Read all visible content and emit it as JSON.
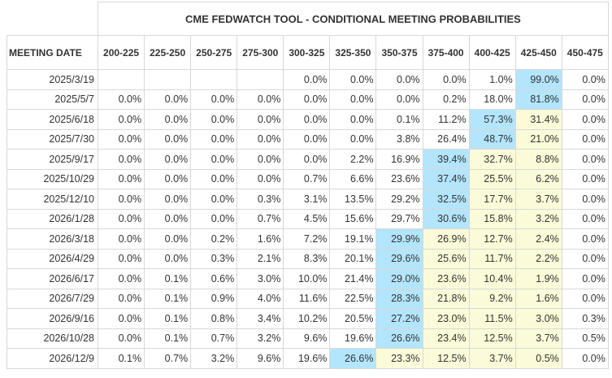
{
  "title": "CME FEDWATCH TOOL - CONDITIONAL MEETING PROBABILITIES",
  "colors": {
    "highest": "#b3e5fc",
    "elevated": "#fbfbd9",
    "grid": "#d8d8d8",
    "text": "#333333"
  },
  "chart_data": {
    "type": "table",
    "title": "CME FEDWATCH TOOL - CONDITIONAL MEETING PROBABILITIES",
    "date_header": "MEETING DATE",
    "columns": [
      "200-225",
      "225-250",
      "250-275",
      "275-300",
      "300-325",
      "325-350",
      "350-375",
      "375-400",
      "400-425",
      "425-450",
      "450-475"
    ],
    "rows": [
      {
        "date": "2025/3/19",
        "values": [
          "",
          "",
          "",
          "",
          "0.0%",
          "0.0%",
          "0.0%",
          "0.0%",
          "1.0%",
          "99.0%",
          "0.0%"
        ],
        "highlight": [
          "",
          "",
          "",
          "",
          "",
          "",
          "",
          "",
          "",
          "blue",
          ""
        ]
      },
      {
        "date": "2025/5/7",
        "values": [
          "0.0%",
          "0.0%",
          "0.0%",
          "0.0%",
          "0.0%",
          "0.0%",
          "0.0%",
          "0.2%",
          "18.0%",
          "81.8%",
          "0.0%"
        ],
        "highlight": [
          "",
          "",
          "",
          "",
          "",
          "",
          "",
          "",
          "",
          "blue",
          ""
        ]
      },
      {
        "date": "2025/6/18",
        "values": [
          "0.0%",
          "0.0%",
          "0.0%",
          "0.0%",
          "0.0%",
          "0.0%",
          "0.1%",
          "11.2%",
          "57.3%",
          "31.4%",
          "0.0%"
        ],
        "highlight": [
          "",
          "",
          "",
          "",
          "",
          "",
          "",
          "",
          "blue",
          "yellow",
          ""
        ]
      },
      {
        "date": "2025/7/30",
        "values": [
          "0.0%",
          "0.0%",
          "0.0%",
          "0.0%",
          "0.0%",
          "0.0%",
          "3.8%",
          "26.4%",
          "48.7%",
          "21.0%",
          "0.0%"
        ],
        "highlight": [
          "",
          "",
          "",
          "",
          "",
          "",
          "",
          "",
          "blue",
          "yellow",
          ""
        ]
      },
      {
        "date": "2025/9/17",
        "values": [
          "0.0%",
          "0.0%",
          "0.0%",
          "0.0%",
          "0.0%",
          "2.2%",
          "16.9%",
          "39.4%",
          "32.7%",
          "8.8%",
          "0.0%"
        ],
        "highlight": [
          "",
          "",
          "",
          "",
          "",
          "",
          "",
          "blue",
          "yellow",
          "yellow",
          ""
        ]
      },
      {
        "date": "2025/10/29",
        "values": [
          "0.0%",
          "0.0%",
          "0.0%",
          "0.0%",
          "0.7%",
          "6.6%",
          "23.6%",
          "37.4%",
          "25.5%",
          "6.2%",
          "0.0%"
        ],
        "highlight": [
          "",
          "",
          "",
          "",
          "",
          "",
          "",
          "blue",
          "yellow",
          "yellow",
          ""
        ]
      },
      {
        "date": "2025/12/10",
        "values": [
          "0.0%",
          "0.0%",
          "0.0%",
          "0.3%",
          "3.1%",
          "13.5%",
          "29.2%",
          "32.5%",
          "17.7%",
          "3.7%",
          "0.0%"
        ],
        "highlight": [
          "",
          "",
          "",
          "",
          "",
          "",
          "",
          "blue",
          "yellow",
          "yellow",
          ""
        ]
      },
      {
        "date": "2026/1/28",
        "values": [
          "0.0%",
          "0.0%",
          "0.0%",
          "0.7%",
          "4.5%",
          "15.6%",
          "29.7%",
          "30.6%",
          "15.8%",
          "3.2%",
          "0.0%"
        ],
        "highlight": [
          "",
          "",
          "",
          "",
          "",
          "",
          "",
          "blue",
          "yellow",
          "yellow",
          ""
        ]
      },
      {
        "date": "2026/3/18",
        "values": [
          "0.0%",
          "0.0%",
          "0.2%",
          "1.6%",
          "7.2%",
          "19.1%",
          "29.9%",
          "26.9%",
          "12.7%",
          "2.4%",
          "0.0%"
        ],
        "highlight": [
          "",
          "",
          "",
          "",
          "",
          "",
          "blue",
          "yellow",
          "yellow",
          "yellow",
          ""
        ]
      },
      {
        "date": "2026/4/29",
        "values": [
          "0.0%",
          "0.0%",
          "0.3%",
          "2.1%",
          "8.3%",
          "20.1%",
          "29.6%",
          "25.6%",
          "11.7%",
          "2.2%",
          "0.0%"
        ],
        "highlight": [
          "",
          "",
          "",
          "",
          "",
          "",
          "blue",
          "yellow",
          "yellow",
          "yellow",
          ""
        ]
      },
      {
        "date": "2026/6/17",
        "values": [
          "0.0%",
          "0.1%",
          "0.6%",
          "3.0%",
          "10.0%",
          "21.4%",
          "29.0%",
          "23.6%",
          "10.4%",
          "1.9%",
          "0.0%"
        ],
        "highlight": [
          "",
          "",
          "",
          "",
          "",
          "",
          "blue",
          "yellow",
          "yellow",
          "yellow",
          ""
        ]
      },
      {
        "date": "2026/7/29",
        "values": [
          "0.0%",
          "0.1%",
          "0.9%",
          "4.0%",
          "11.6%",
          "22.5%",
          "28.3%",
          "21.8%",
          "9.2%",
          "1.6%",
          "0.0%"
        ],
        "highlight": [
          "",
          "",
          "",
          "",
          "",
          "",
          "blue",
          "yellow",
          "yellow",
          "yellow",
          ""
        ]
      },
      {
        "date": "2026/9/16",
        "values": [
          "0.0%",
          "0.1%",
          "0.8%",
          "3.4%",
          "10.2%",
          "20.5%",
          "27.2%",
          "23.0%",
          "11.5%",
          "3.0%",
          "0.3%"
        ],
        "highlight": [
          "",
          "",
          "",
          "",
          "",
          "",
          "blue",
          "yellow",
          "yellow",
          "yellow",
          ""
        ]
      },
      {
        "date": "2026/10/28",
        "values": [
          "0.0%",
          "0.1%",
          "0.7%",
          "3.2%",
          "9.6%",
          "19.6%",
          "26.6%",
          "23.4%",
          "12.5%",
          "3.7%",
          "0.5%"
        ],
        "highlight": [
          "",
          "",
          "",
          "",
          "",
          "",
          "blue",
          "yellow",
          "yellow",
          "yellow",
          ""
        ]
      },
      {
        "date": "2026/12/9",
        "values": [
          "0.1%",
          "0.7%",
          "3.2%",
          "9.6%",
          "19.6%",
          "26.6%",
          "23.3%",
          "12.5%",
          "3.7%",
          "0.5%",
          "0.0%"
        ],
        "highlight": [
          "",
          "",
          "",
          "",
          "",
          "blue",
          "yellow",
          "yellow",
          "yellow",
          "yellow",
          ""
        ]
      }
    ]
  }
}
